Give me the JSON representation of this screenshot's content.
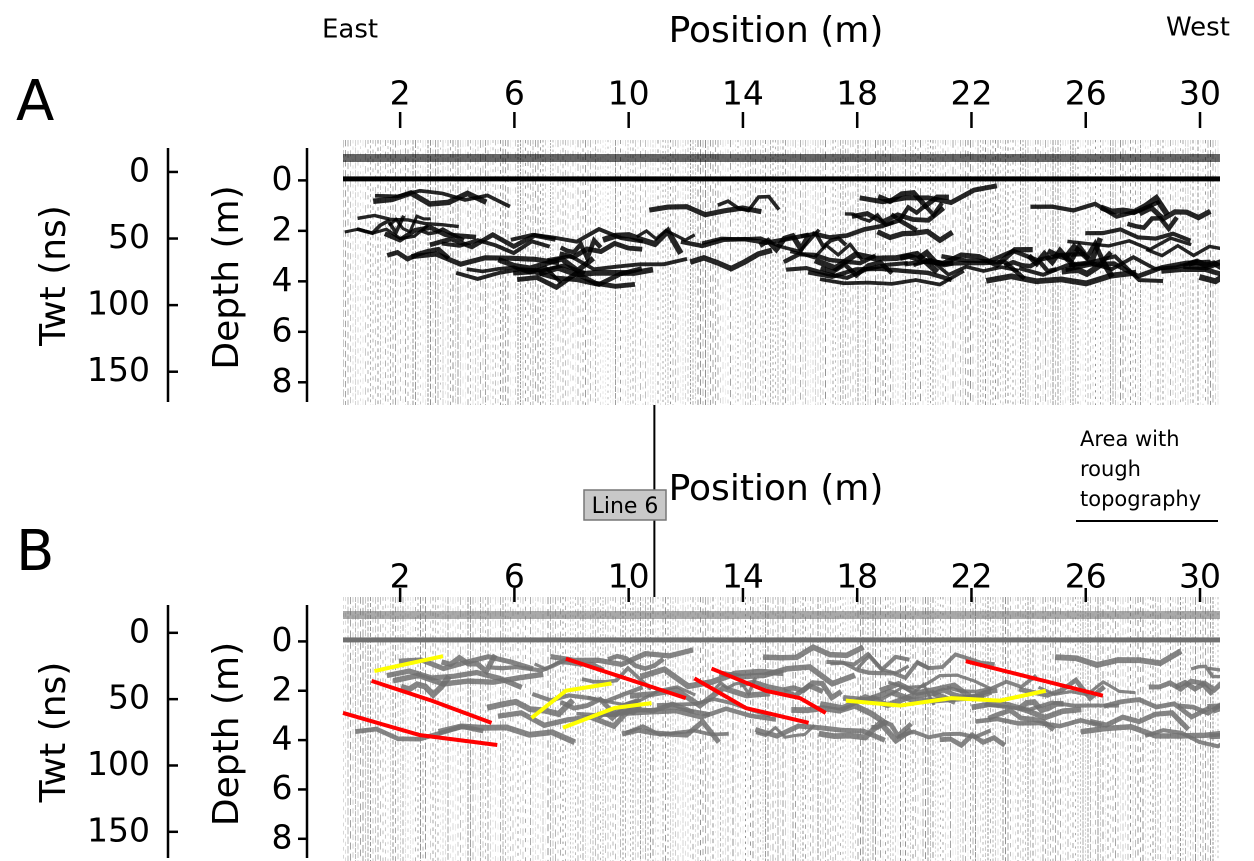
{
  "chart_data": [
    {
      "type": "radargram",
      "panel": "A",
      "left_label": "East",
      "right_label": "West",
      "xlabel": "Position (m)",
      "xlim": [
        0,
        30.7
      ],
      "xticks": [
        2,
        6,
        10,
        14,
        18,
        22,
        26,
        30
      ],
      "ylabel": "Depth (m)",
      "ylim": [
        -1.6,
        8.9
      ],
      "yticks": [
        0,
        2,
        4,
        6,
        8
      ],
      "y2label": "Twt (ns)",
      "y2lim": [
        -24,
        175
      ],
      "y2ticks": [
        0,
        50,
        100,
        150
      ],
      "color": "#000000"
    },
    {
      "type": "radargram",
      "panel": "B",
      "marker_label": "Line 6",
      "marker_x": 10.9,
      "annotation": [
        "Area with",
        "rough",
        "topography"
      ],
      "xlabel": "Position (m)",
      "xlim": [
        0,
        30.7
      ],
      "xticks": [
        2,
        6,
        10,
        14,
        18,
        22,
        26,
        30
      ],
      "ylabel": "Depth (m)",
      "ylim": [
        -1.8,
        8.9
      ],
      "yticks": [
        0,
        2,
        4,
        6,
        8
      ],
      "y2label": "Twt (ns)",
      "y2lim": [
        -27,
        172
      ],
      "y2ticks": [
        0,
        50,
        100,
        150
      ],
      "color": "#707070",
      "series": [
        {
          "color": "#ff0000",
          "x": [
            0,
            2.7,
            5.4
          ],
          "values": [
            2.9,
            3.8,
            4.2
          ]
        },
        {
          "color": "#ff0000",
          "x": [
            1.0,
            3.1,
            5.2
          ],
          "values": [
            1.6,
            2.4,
            3.3
          ]
        },
        {
          "color": "#ff0000",
          "x": [
            7.8,
            12.0
          ],
          "values": [
            0.7,
            2.3
          ]
        },
        {
          "color": "#ff0000",
          "x": [
            12.3,
            14.1,
            16.3
          ],
          "values": [
            1.5,
            2.7,
            3.3
          ]
        },
        {
          "color": "#ff0000",
          "x": [
            12.9,
            14.8,
            16.0,
            16.9
          ],
          "values": [
            1.1,
            2.0,
            2.3,
            2.9
          ]
        },
        {
          "color": "#ff0000",
          "x": [
            21.8,
            26.6
          ],
          "values": [
            0.8,
            2.2
          ]
        },
        {
          "color": "#ffff00",
          "x": [
            1.1,
            3.5
          ],
          "values": [
            1.2,
            0.6
          ]
        },
        {
          "color": "#ffff00",
          "x": [
            6.6,
            7.8,
            9.4
          ],
          "values": [
            3.1,
            2.0,
            1.7
          ]
        },
        {
          "color": "#ffff00",
          "x": [
            7.7,
            9.5,
            10.8
          ],
          "values": [
            3.5,
            2.7,
            2.5
          ]
        },
        {
          "color": "#ffff00",
          "x": [
            17.6,
            19.5,
            21.3,
            23.0,
            24.6
          ],
          "values": [
            2.4,
            2.6,
            2.3,
            2.4,
            2.0
          ]
        }
      ]
    }
  ]
}
